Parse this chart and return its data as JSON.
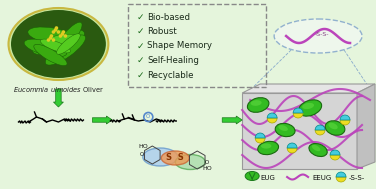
{
  "background_color": "#e5f5dc",
  "checklist": [
    "Bio-based",
    "Robust",
    "Shape Memory",
    "Self-Healing",
    "Recyclable"
  ],
  "plant_label": "$\\it{Eucommia\\ ulmoides}$ Oliver",
  "dashed_box_color": "#888888",
  "green_arrow": "#33cc33",
  "green_dark": "#1a7a1a",
  "green_leaf": "#2a9a0a",
  "green_bright": "#44dd22",
  "purple": "#bb44bb",
  "yellow": "#eedd22",
  "cyan_node": "#44ccdd",
  "orange_blob": "#ee9955",
  "blue_blob": "#88aaee",
  "box_face": "#cccccc",
  "box_top": "#dddddd",
  "box_right": "#bbbbbb",
  "ss_text_color": "#884488",
  "zoom_ellipse_color": "#88bbcc",
  "text_color": "#222222",
  "check_color": "#1a6a1a"
}
